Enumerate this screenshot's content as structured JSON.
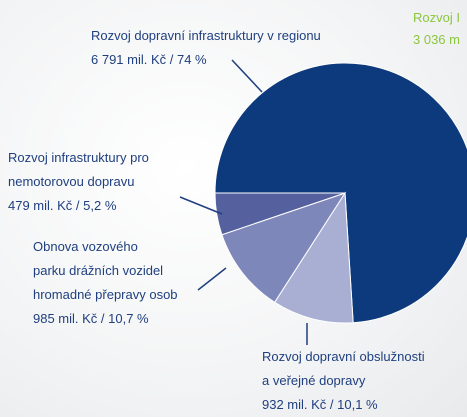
{
  "chart_data": {
    "type": "pie",
    "categories": [
      "Rozvoj dopravní infrastruktury v regionu",
      "Rozvoj dopravní obslužnosti a veřejné dopravy",
      "Obnova vozového parku drážních vozidel hromadné přepravy osob",
      "Rozvoj infrastruktury pro nemotorovou dopravu"
    ],
    "values": [
      74,
      10.1,
      10.7,
      5.2
    ],
    "value_labels": [
      "6 791 mil. Kč / 74 %",
      "932 mil. Kč / 10,1 %",
      "985 mil. Kč / 10,7 %",
      "479 mil. Kč / 5,2 %"
    ],
    "colors": [
      "#0d3a7c",
      "#a9afd2",
      "#7e87ba",
      "#55619f"
    ],
    "annotations": [
      "Rozvoj I",
      "3 036 m"
    ]
  }
}
